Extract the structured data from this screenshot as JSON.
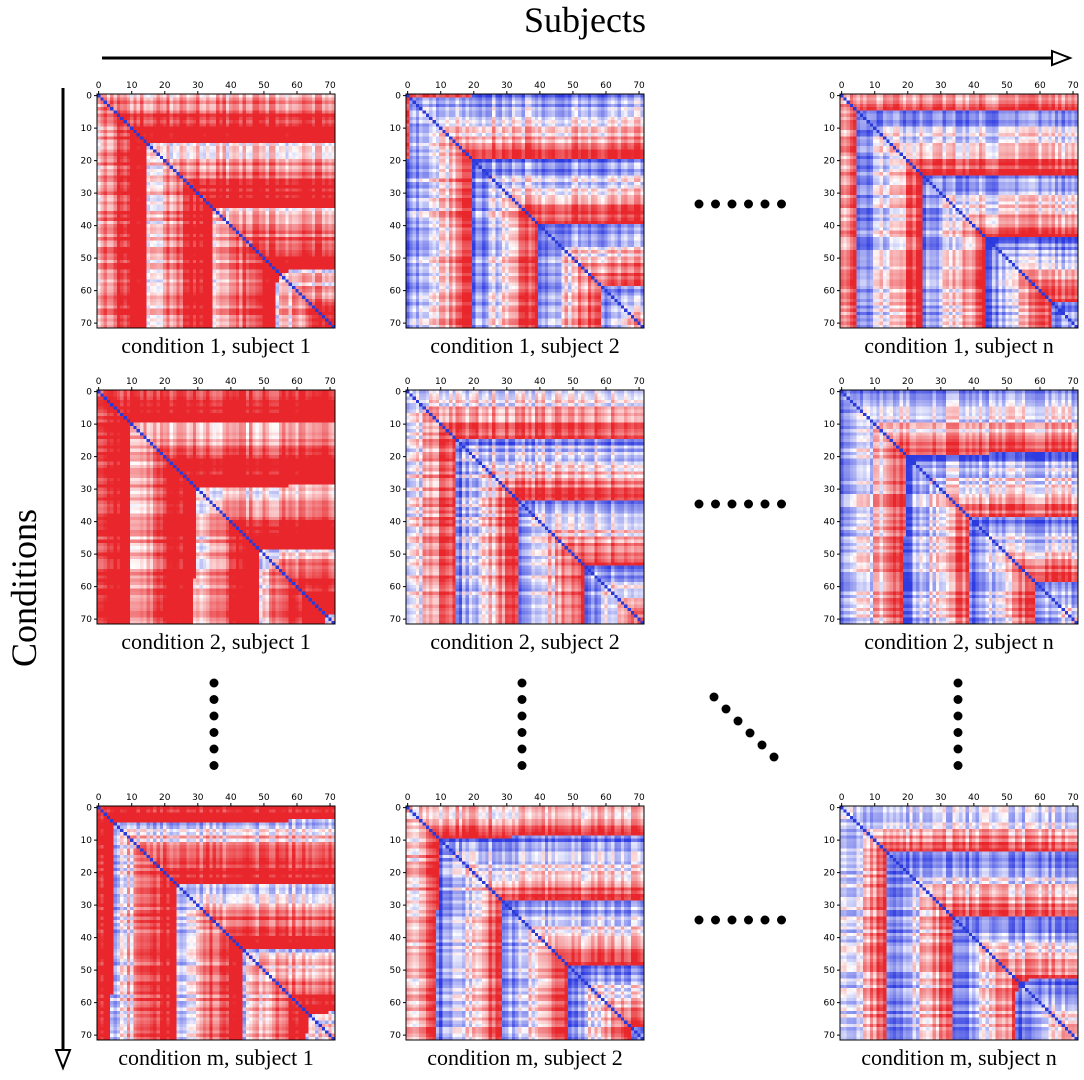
{
  "axes": {
    "horizontal_title": "Subjects",
    "vertical_title": "Conditions"
  },
  "matrix": {
    "size": 72,
    "tick_labels": [
      "0",
      "10",
      "20",
      "30",
      "40",
      "50",
      "60",
      "70"
    ],
    "tick_values": [
      0,
      10,
      20,
      30,
      40,
      50,
      60,
      70
    ]
  },
  "colors": {
    "positive": "#e8262b",
    "negative": "#2e3be0",
    "neutral": "#ffffff",
    "diagonal": "#2a3ad8",
    "frame": "#000000"
  },
  "panels": [
    {
      "caption": "condition 1, subject 1",
      "red_bias": 0.75
    },
    {
      "caption": "condition 1, subject 2",
      "red_bias": 0.15
    },
    {
      "caption": "condition 1, subject n",
      "red_bias": 0.1
    },
    {
      "caption": "condition 2, subject 1",
      "red_bias": 0.8
    },
    {
      "caption": "condition 2, subject 2",
      "red_bias": 0.2
    },
    {
      "caption": "condition 2, subject n",
      "red_bias": 0.05
    },
    {
      "caption": "condition m, subject 1",
      "red_bias": 0.55
    },
    {
      "caption": "condition m, subject 2",
      "red_bias": 0.1
    },
    {
      "caption": "condition m, subject n",
      "red_bias": 0.0
    }
  ],
  "ellipsis": {
    "horizontal_dots": 6,
    "vertical_dots": 6,
    "diagonal_dots": 6
  }
}
